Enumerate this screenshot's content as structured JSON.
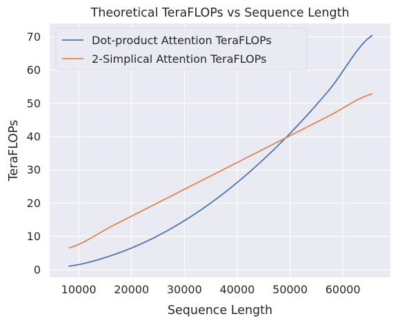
{
  "chart_data": {
    "type": "line",
    "title": "Theoretical TeraFLOPs vs Sequence Length",
    "xlabel": "Sequence Length",
    "ylabel": "TeraFLOPs",
    "xlim": [
      4500,
      69000
    ],
    "ylim": [
      -2.3,
      74
    ],
    "xticks": [
      10000,
      20000,
      30000,
      40000,
      50000,
      60000
    ],
    "yticks": [
      0,
      10,
      20,
      30,
      40,
      50,
      60,
      70
    ],
    "grid": true,
    "background": "#eaeaf2",
    "gridColor": "#ffffff",
    "legend": {
      "placement": "top-left"
    },
    "x": [
      8192,
      16384,
      24576,
      32768,
      40960,
      49152,
      57344,
      65536
    ],
    "series": [
      {
        "name": "Dot-product Attention TeraFLOPs",
        "color": "#4c72b0",
        "values": [
          1.1,
          4.4,
          9.9,
          17.6,
          27.5,
          39.6,
          53.9,
          70.4
        ]
      },
      {
        "name": "2-Simplical Attention TeraFLOPs",
        "color": "#dd8452",
        "values": [
          6.6,
          13.2,
          19.8,
          26.4,
          33.0,
          39.6,
          46.2,
          52.8
        ]
      }
    ]
  }
}
